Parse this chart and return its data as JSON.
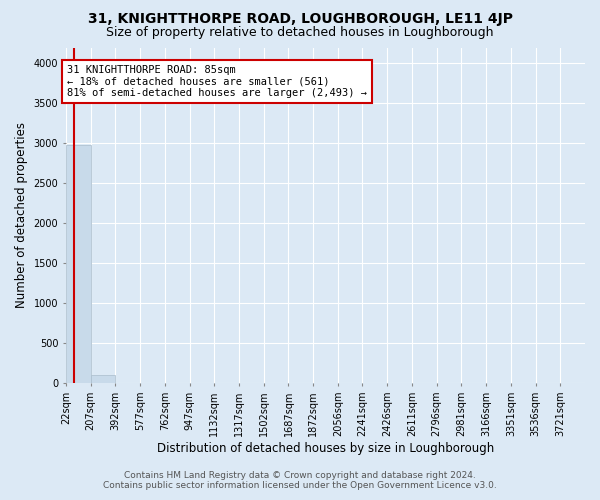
{
  "title": "31, KNIGHTTHORPE ROAD, LOUGHBOROUGH, LE11 4JP",
  "subtitle": "Size of property relative to detached houses in Loughborough",
  "xlabel": "Distribution of detached houses by size in Loughborough",
  "ylabel": "Number of detached properties",
  "footer_line1": "Contains HM Land Registry data © Crown copyright and database right 2024.",
  "footer_line2": "Contains public sector information licensed under the Open Government Licence v3.0.",
  "bar_edges": [
    22,
    207,
    392,
    577,
    762,
    947,
    1132,
    1317,
    1502,
    1687,
    1872,
    2056,
    2241,
    2426,
    2611,
    2796,
    2981,
    3166,
    3351,
    3536,
    3721
  ],
  "bar_heights": [
    2985,
    105,
    5,
    2,
    1,
    1,
    0,
    1,
    0,
    0,
    0,
    0,
    0,
    0,
    0,
    0,
    0,
    0,
    0,
    0
  ],
  "bar_color": "#c8daea",
  "bar_edgecolor": "#aabdcc",
  "background_color": "#dce9f5",
  "grid_color": "#ffffff",
  "property_size": 85,
  "vline_color": "#cc0000",
  "annotation_line1": "31 KNIGHTTHORPE ROAD: 85sqm",
  "annotation_line2": "← 18% of detached houses are smaller (561)",
  "annotation_line3": "81% of semi-detached houses are larger (2,493) →",
  "annotation_box_edgecolor": "#cc0000",
  "annotation_bg": "#ffffff",
  "ylim": [
    0,
    4200
  ],
  "yticks": [
    0,
    500,
    1000,
    1500,
    2000,
    2500,
    3000,
    3500,
    4000
  ],
  "title_fontsize": 10,
  "subtitle_fontsize": 9,
  "tick_fontsize": 7,
  "ylabel_fontsize": 8.5,
  "xlabel_fontsize": 8.5,
  "footer_fontsize": 6.5,
  "annotation_fontsize": 7.5
}
